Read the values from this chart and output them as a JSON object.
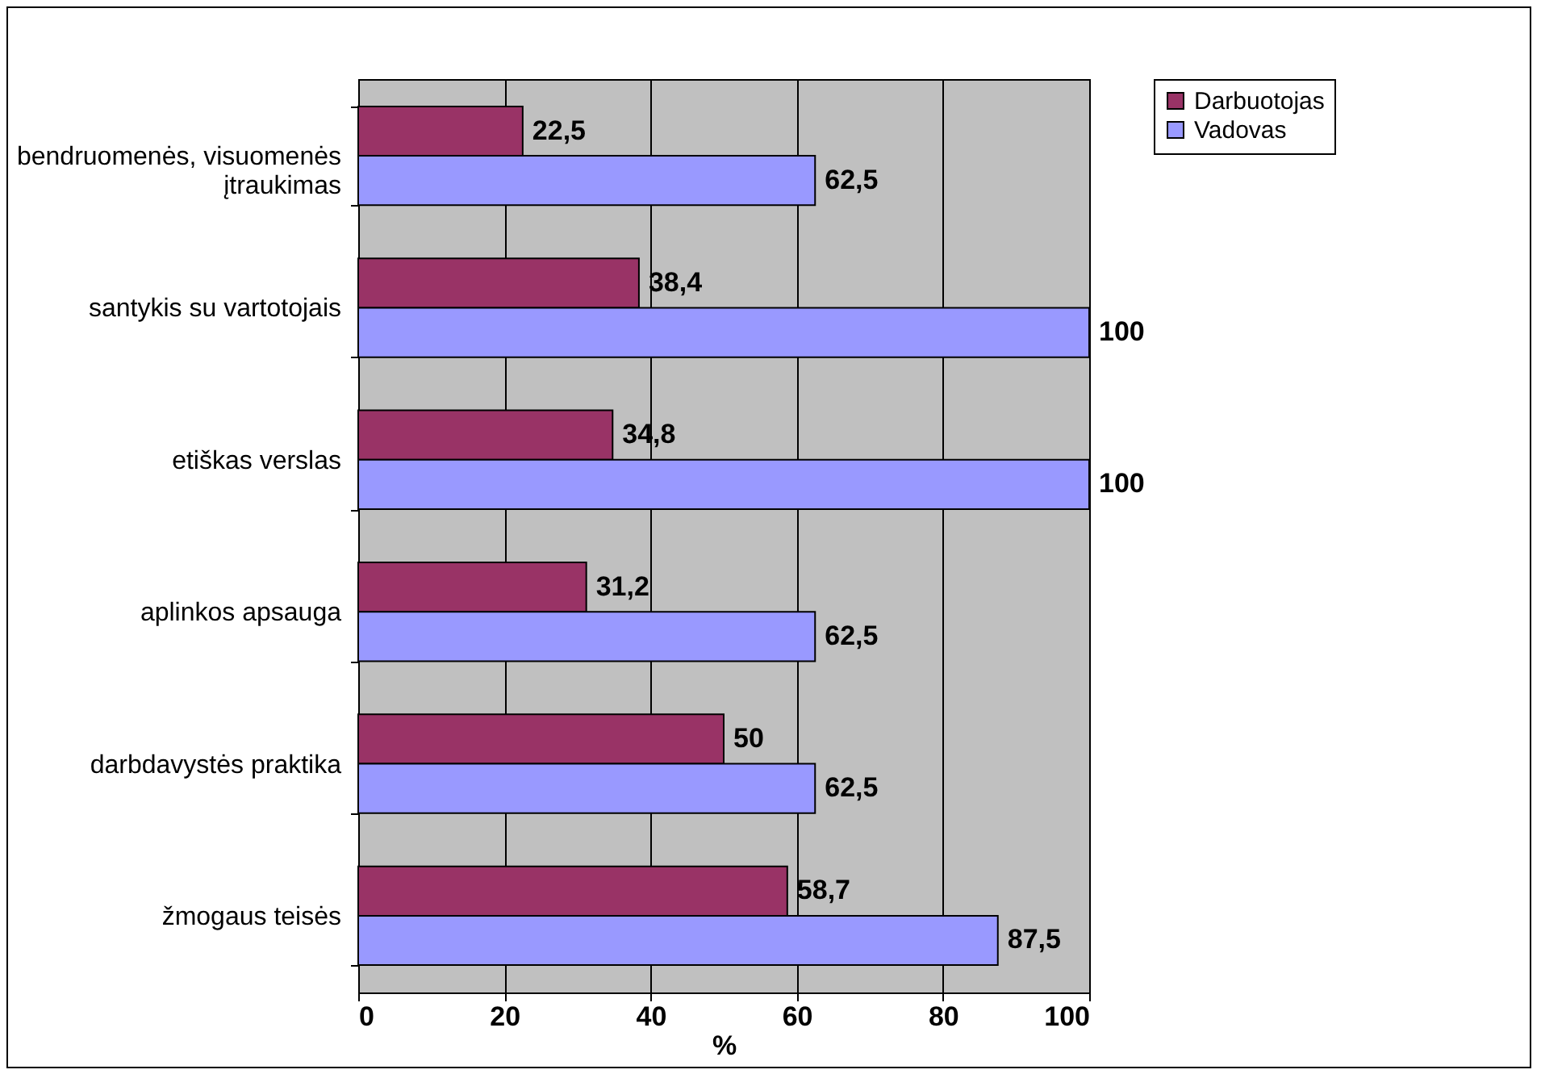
{
  "chart_data": {
    "type": "bar",
    "orientation": "horizontal",
    "xlabel": "%",
    "categories": [
      "bendruomenės, visuomenės įtraukimas",
      "santykis su vartotojais",
      "etiškas verslas",
      "aplinkos apsauga",
      "darbdavystės praktika",
      "žmogaus teisės"
    ],
    "series": [
      {
        "name": "Darbuotojas",
        "color": "#993366",
        "values": [
          22.5,
          38.4,
          34.8,
          31.2,
          50,
          58.7
        ],
        "value_labels": [
          "22,5",
          "38,4",
          "34,8",
          "31,2",
          "50",
          "58,7"
        ]
      },
      {
        "name": "Vadovas",
        "color": "#9999ff",
        "values": [
          62.5,
          100,
          100,
          62.5,
          62.5,
          87.5
        ],
        "value_labels": [
          "62,5",
          "100",
          "100",
          "62,5",
          "62,5",
          "87,5"
        ]
      }
    ],
    "xlim": [
      0,
      100
    ],
    "xticks": [
      0,
      20,
      40,
      60,
      80,
      100
    ],
    "grid": "x",
    "legend": "right"
  }
}
